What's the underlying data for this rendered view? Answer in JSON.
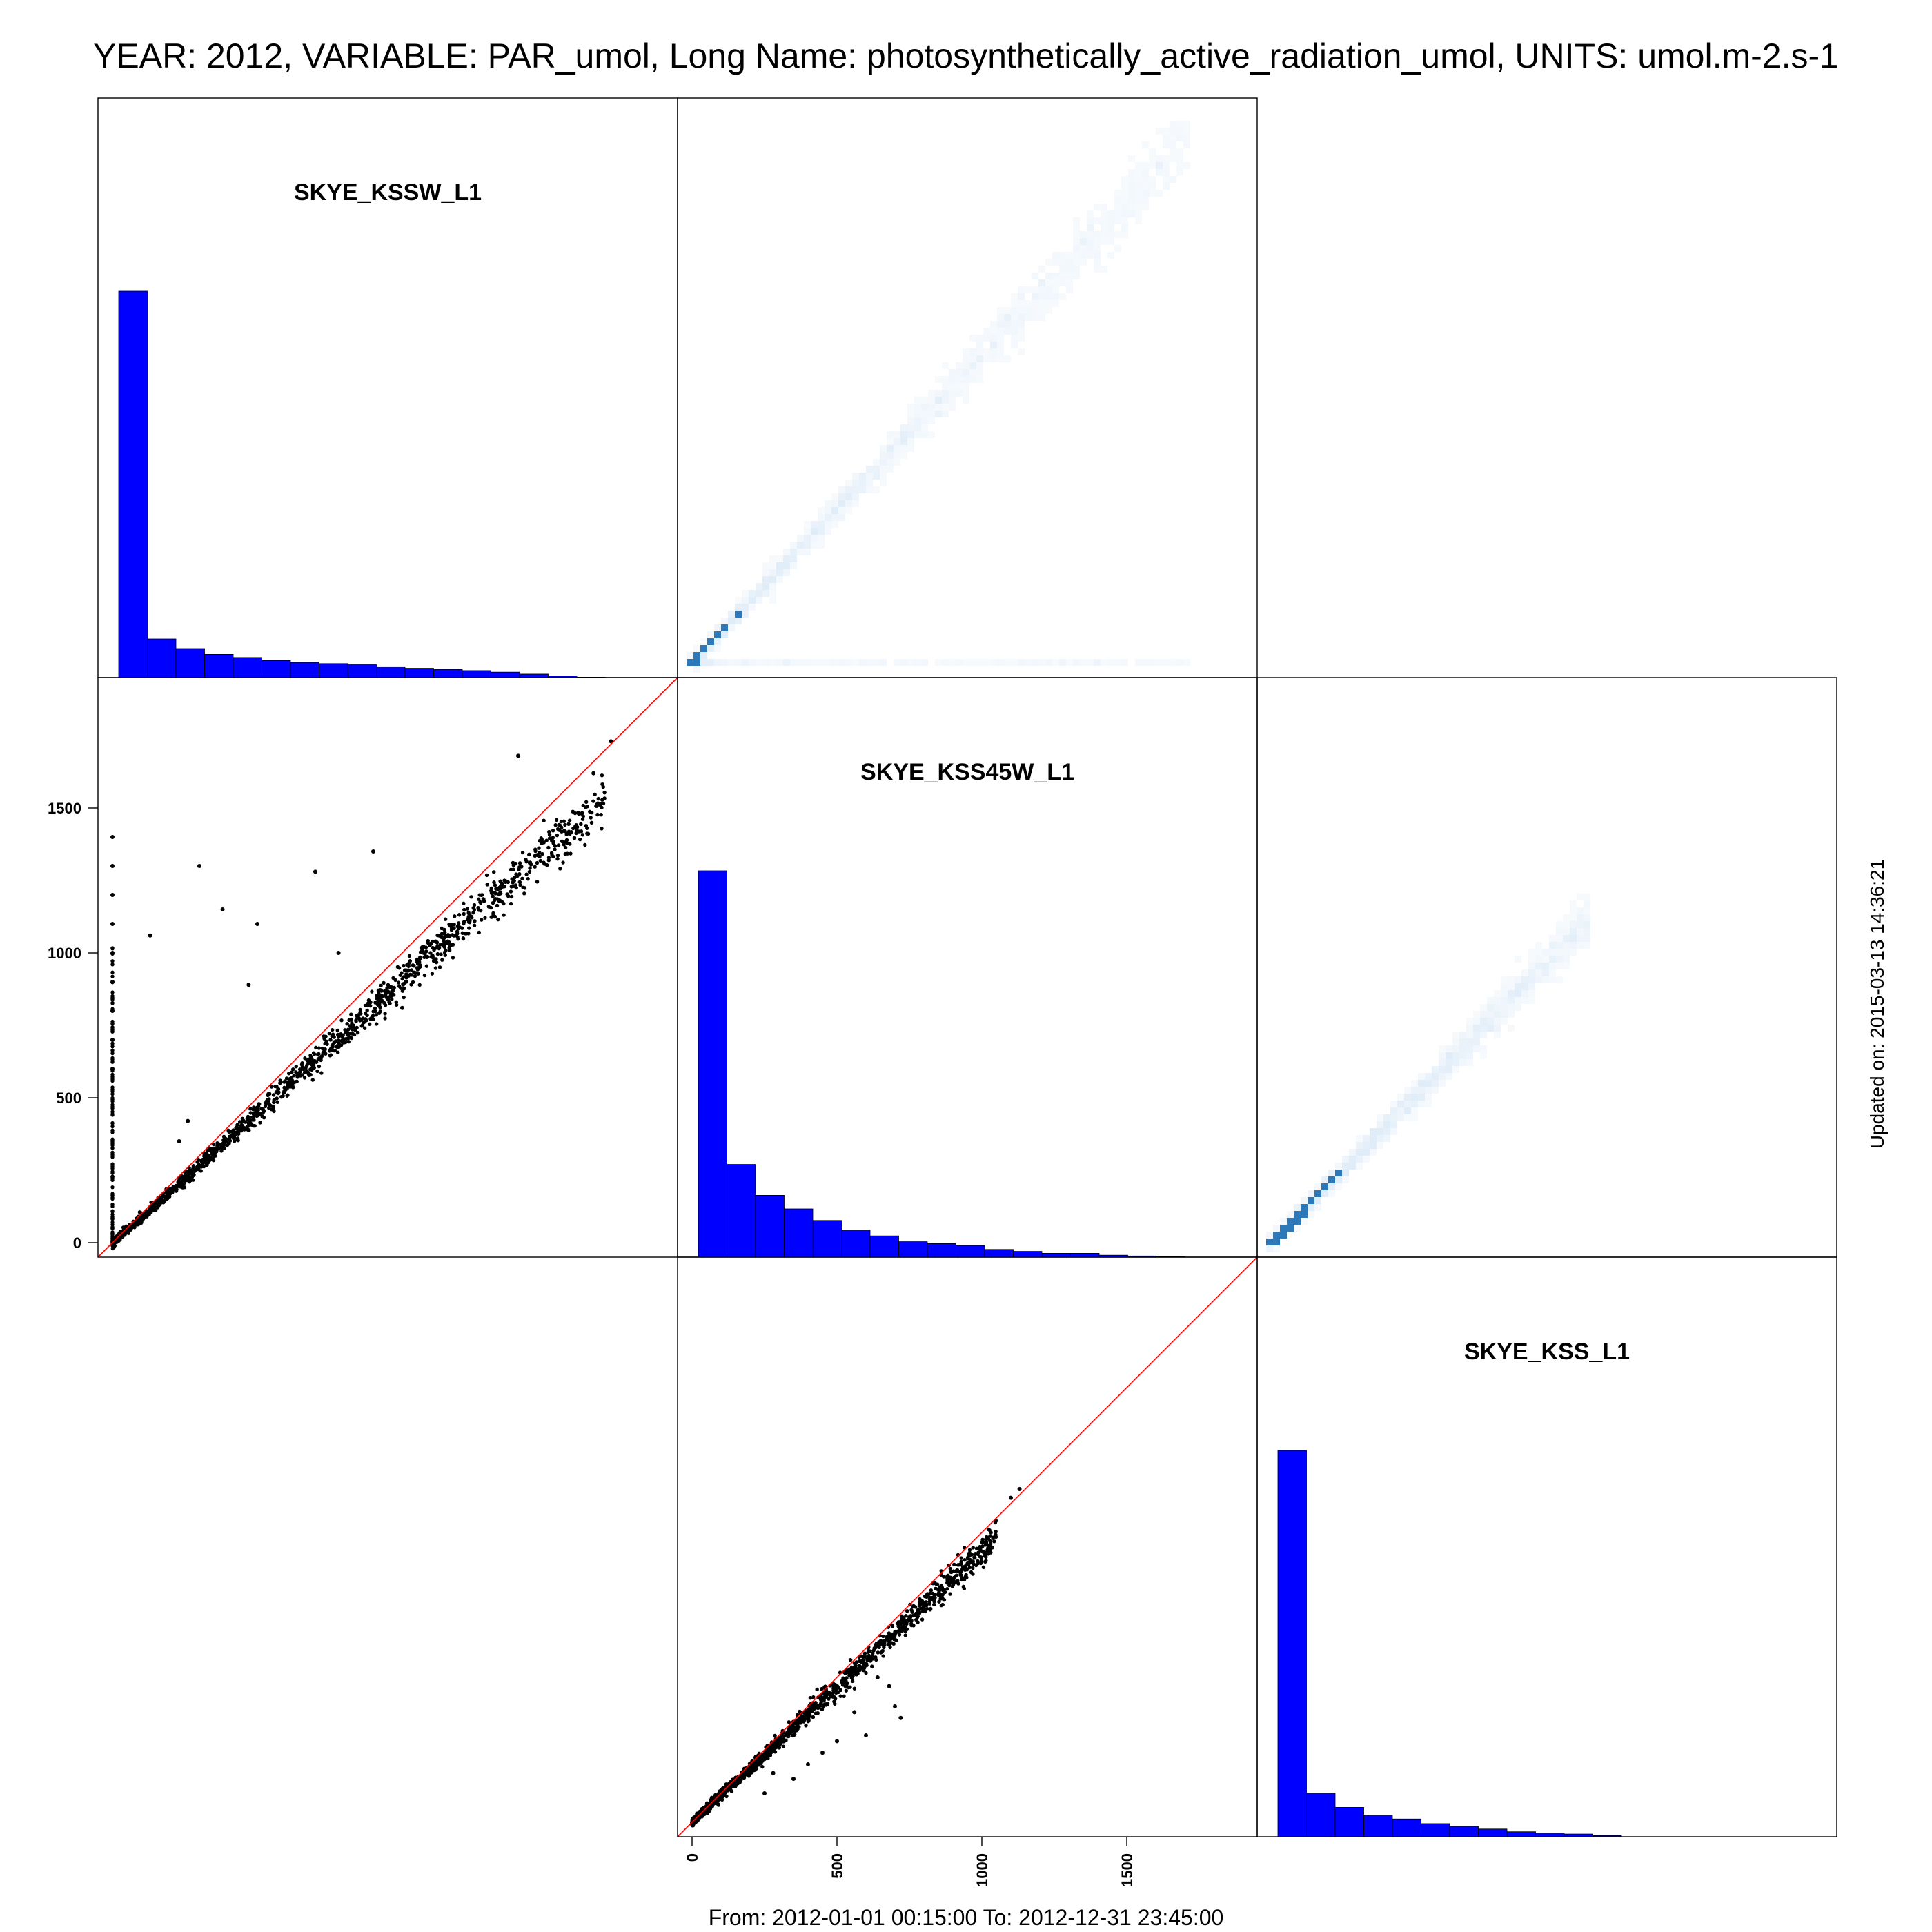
{
  "header": {
    "title": "YEAR: 2012, VARIABLE: PAR_umol, Long Name: photosynthetically_active_radiation_umol, UNITS: umol.m-2.s-1",
    "footer": "From: 2012-01-01 00:15:00 To: 2012-12-31 23:45:00",
    "updated": "Updated on: 2015-03-13 14:36:21"
  },
  "colors": {
    "histogram_fill": "#0000ff",
    "scatter_point": "#000000",
    "identity_line": "#ff0000",
    "hexbin_light": "#deebf7",
    "hexbin_dark": "#2171b5"
  },
  "chart_data": {
    "type": "scatter",
    "variables": [
      "SKYE_KSSW_L1",
      "SKYE_KSS45W_L1",
      "SKYE_KSS_L1"
    ],
    "axis_ticks": [
      "0",
      "500",
      "1000",
      "1500"
    ],
    "axis_range": [
      -50,
      1950
    ],
    "diagonal": {
      "type": "bar",
      "bins_kssw": [
        100,
        10,
        7.5,
        6,
        5.2,
        4.4,
        3.9,
        3.6,
        3.3,
        2.8,
        2.4,
        2.1,
        1.8,
        1.4,
        0.9,
        0.4,
        0.1
      ],
      "bins_kss45w": [
        100,
        24,
        16,
        12.5,
        9.5,
        7,
        5.5,
        4,
        3.5,
        3,
        2,
        1.5,
        1,
        1,
        0.5,
        0.3,
        0.1
      ],
      "bins_kss": [
        100,
        11.3,
        7.6,
        5.6,
        4.6,
        3.4,
        2.7,
        2,
        1.3,
        1,
        0.7,
        0.3
      ]
    },
    "lower_scatter": [
      {
        "x_var": "SKYE_KSSW_L1",
        "y_var": "SKYE_KSS45W_L1",
        "trend_x": [
          0,
          100,
          200,
          400,
          600,
          800,
          1000,
          1200,
          1400,
          1600,
          1700
        ],
        "trend_y": [
          0,
          85,
          175,
          355,
          540,
          720,
          905,
          1090,
          1270,
          1440,
          1530
        ],
        "outliers": [
          [
            0,
            1400
          ],
          [
            0,
            1300
          ],
          [
            0,
            1200
          ],
          [
            0,
            1100
          ],
          [
            0,
            1000
          ],
          [
            0,
            900
          ],
          [
            0,
            800
          ],
          [
            0,
            700
          ],
          [
            0,
            600
          ],
          [
            300,
            1300
          ],
          [
            380,
            1150
          ],
          [
            500,
            1100
          ],
          [
            130,
            1060
          ],
          [
            700,
            1280
          ],
          [
            900,
            1350
          ],
          [
            1400,
            1680
          ],
          [
            1720,
            1730
          ],
          [
            1660,
            1620
          ],
          [
            230,
            350
          ],
          [
            260,
            420
          ],
          [
            470,
            890
          ],
          [
            780,
            1000
          ],
          [
            1000,
            810
          ]
        ]
      },
      {
        "x_var": "SKYE_KSS45W_L1",
        "y_var": "SKYE_KSS_L1",
        "trend_x": [
          0,
          100,
          200,
          300,
          400,
          500,
          600,
          700,
          800,
          900,
          1000,
          1050
        ],
        "trend_y": [
          0,
          95,
          185,
          280,
          375,
          465,
          560,
          655,
          745,
          840,
          935,
          980
        ],
        "outliers": [
          [
            1130,
            1150
          ],
          [
            1100,
            1120
          ],
          [
            680,
            470
          ],
          [
            700,
            400
          ],
          [
            720,
            360
          ],
          [
            600,
            300
          ],
          [
            500,
            280
          ],
          [
            400,
            200
          ],
          [
            350,
            150
          ],
          [
            250,
            100
          ],
          [
            280,
            170
          ],
          [
            450,
            240
          ],
          [
            640,
            500
          ],
          [
            560,
            380
          ]
        ]
      }
    ]
  }
}
